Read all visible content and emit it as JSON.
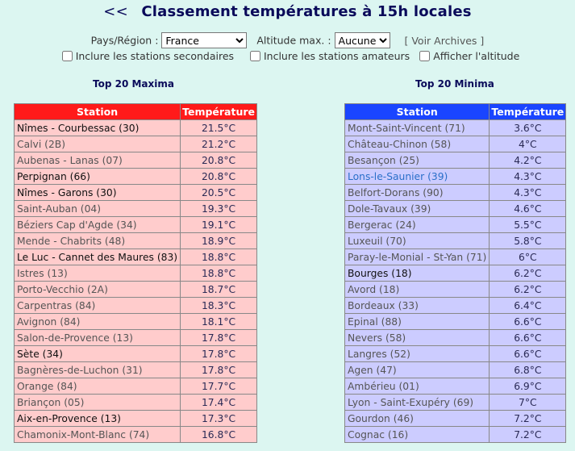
{
  "header": {
    "back": "<<",
    "title": "Classement températures à 15h locales"
  },
  "controls": {
    "region_label": "Pays/Région :",
    "region_value": "France",
    "altitude_label": "Altitude max. :",
    "altitude_value": "Aucune",
    "archives_link": "[ Voir Archives ]",
    "cb_secondary": "Inclure les stations secondaires",
    "cb_amateur": "Inclure les stations amateurs",
    "cb_altitude": "Afficher l'altitude"
  },
  "colors": {
    "max_header": "#ff1a1a",
    "max_rows": "#ffcccc",
    "min_header": "#1a45ff",
    "min_rows": "#ccccff"
  },
  "maxima": {
    "title": "Top 20 Maxima",
    "col_station": "Station",
    "col_temp": "Température",
    "rows": [
      {
        "station": "Nîmes - Courbessac (30)",
        "temp": "21.5°C",
        "main": true
      },
      {
        "station": "Calvi (2B)",
        "temp": "21.2°C"
      },
      {
        "station": "Aubenas - Lanas (07)",
        "temp": "20.8°C"
      },
      {
        "station": "Perpignan (66)",
        "temp": "20.8°C",
        "main": true
      },
      {
        "station": "Nîmes - Garons (30)",
        "temp": "20.5°C",
        "main": true
      },
      {
        "station": "Saint-Auban (04)",
        "temp": "19.3°C"
      },
      {
        "station": "Béziers Cap d'Agde (34)",
        "temp": "19.1°C"
      },
      {
        "station": "Mende - Chabrits (48)",
        "temp": "18.9°C"
      },
      {
        "station": "Le Luc - Cannet des Maures (83)",
        "temp": "18.8°C",
        "main": true
      },
      {
        "station": "Istres (13)",
        "temp": "18.8°C"
      },
      {
        "station": "Porto-Vecchio (2A)",
        "temp": "18.7°C"
      },
      {
        "station": "Carpentras (84)",
        "temp": "18.3°C"
      },
      {
        "station": "Avignon (84)",
        "temp": "18.1°C"
      },
      {
        "station": "Salon-de-Provence (13)",
        "temp": "17.8°C"
      },
      {
        "station": "Sète (34)",
        "temp": "17.8°C",
        "main": true
      },
      {
        "station": "Bagnères-de-Luchon (31)",
        "temp": "17.8°C"
      },
      {
        "station": "Orange (84)",
        "temp": "17.7°C"
      },
      {
        "station": "Briançon (05)",
        "temp": "17.4°C"
      },
      {
        "station": "Aix-en-Provence (13)",
        "temp": "17.3°C",
        "main": true
      },
      {
        "station": "Chamonix-Mont-Blanc (74)",
        "temp": "16.8°C"
      }
    ]
  },
  "minima": {
    "title": "Top 20 Minima",
    "col_station": "Station",
    "col_temp": "Température",
    "rows": [
      {
        "station": "Mont-Saint-Vincent (71)",
        "temp": "3.6°C"
      },
      {
        "station": "Château-Chinon (58)",
        "temp": "4°C"
      },
      {
        "station": "Besançon (25)",
        "temp": "4.2°C"
      },
      {
        "station": "Lons-le-Saunier (39)",
        "temp": "4.3°C",
        "link": true
      },
      {
        "station": "Belfort-Dorans (90)",
        "temp": "4.3°C"
      },
      {
        "station": "Dole-Tavaux (39)",
        "temp": "4.6°C"
      },
      {
        "station": "Bergerac (24)",
        "temp": "5.5°C"
      },
      {
        "station": "Luxeuil (70)",
        "temp": "5.8°C"
      },
      {
        "station": "Paray-le-Monial - St-Yan (71)",
        "temp": "6°C"
      },
      {
        "station": "Bourges (18)",
        "temp": "6.2°C",
        "main": true
      },
      {
        "station": "Avord (18)",
        "temp": "6.2°C"
      },
      {
        "station": "Bordeaux (33)",
        "temp": "6.4°C"
      },
      {
        "station": "Epinal (88)",
        "temp": "6.6°C"
      },
      {
        "station": "Nevers (58)",
        "temp": "6.6°C"
      },
      {
        "station": "Langres (52)",
        "temp": "6.6°C"
      },
      {
        "station": "Agen (47)",
        "temp": "6.8°C"
      },
      {
        "station": "Ambérieu (01)",
        "temp": "6.9°C"
      },
      {
        "station": "Lyon - Saint-Exupéry (69)",
        "temp": "7°C"
      },
      {
        "station": "Gourdon (46)",
        "temp": "7.2°C"
      },
      {
        "station": "Cognac (16)",
        "temp": "7.2°C"
      }
    ]
  }
}
